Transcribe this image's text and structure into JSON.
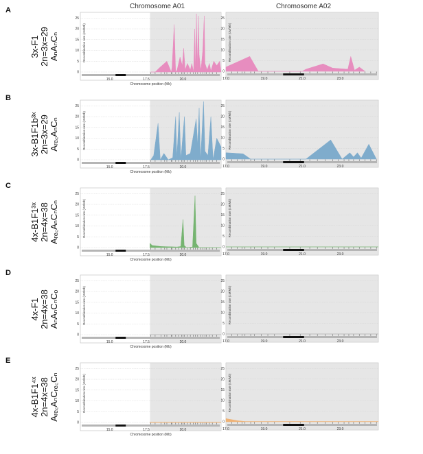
{
  "figure": {
    "column_titles": [
      "Chromosome A01",
      "Chromosome A02"
    ],
    "rows": [
      {
        "letter": "A",
        "label_lines": [
          "3x-F1",
          "2n=3x=29",
          "AₙAₙCₙ"
        ]
      },
      {
        "letter": "B",
        "label_lines": [
          "3x-B1F1b³ˣ",
          "2n=3x=29",
          "Aᵣₑ꜀AₙCₙ"
        ]
      },
      {
        "letter": "C",
        "label_lines": [
          "4x-B1F1³ˣ",
          "2n=4x=38",
          "Aᵣₑ꜀AₙCₙCₙ"
        ]
      },
      {
        "letter": "D",
        "label_lines": [
          "4x-F1",
          "2n=4x=38",
          "AₙAₙCₙCₒ"
        ]
      },
      {
        "letter": "E",
        "label_lines": [
          "4x-B1F1⁴ˣ",
          "2n=4x=38",
          "Aᵣₑ꜀AₙCᵣₑ꜀Cₙ"
        ]
      }
    ],
    "colors": {
      "A": "#e889bd",
      "B": "#7aa9cb",
      "C": "#6fb26a",
      "D": "#aaaaaa",
      "E": "#f0b070",
      "region": "#e6e6e6"
    }
  },
  "chart_data": [
    {
      "type": "area",
      "title": "Chromosome A01",
      "xlabel": "Chromosome position (Mb)",
      "ylabel": "Recombination rate (cM/Mb)",
      "xlim": [
        13.0,
        22.6
      ],
      "ylim": [
        0,
        27
      ],
      "xticks": [
        15.0,
        17.5,
        20.0
      ],
      "yticks": [
        0,
        5,
        10,
        15,
        20,
        25
      ],
      "shaded_region_start_mb": 17.75,
      "centromere_mb": [
        15.4,
        16.1
      ],
      "marker_positions_mb": [
        17.8,
        18.1,
        18.5,
        18.75,
        18.9,
        19.2,
        19.25,
        19.5,
        19.7,
        19.9,
        20.0,
        20.1,
        20.3,
        20.5,
        20.7,
        20.85,
        21.0,
        21.2,
        21.35,
        21.5,
        21.6,
        21.8,
        22.0,
        22.3
      ],
      "series": [
        {
          "name": "A",
          "points": [
            [
              17.8,
              0
            ],
            [
              18.1,
              0
            ],
            [
              18.4,
              2
            ],
            [
              18.9,
              5
            ],
            [
              19.2,
              0
            ],
            [
              19.25,
              2
            ],
            [
              19.4,
              22
            ],
            [
              19.5,
              0
            ],
            [
              19.6,
              1
            ],
            [
              19.8,
              7
            ],
            [
              19.95,
              3
            ],
            [
              20.05,
              11
            ],
            [
              20.15,
              1
            ],
            [
              20.3,
              4
            ],
            [
              20.5,
              1
            ],
            [
              20.6,
              4
            ],
            [
              20.72,
              0
            ],
            [
              20.8,
              20
            ],
            [
              20.86,
              0.5
            ],
            [
              20.92,
              27
            ],
            [
              20.98,
              1
            ],
            [
              21.05,
              26
            ],
            [
              21.1,
              8
            ],
            [
              21.22,
              0.5
            ],
            [
              21.35,
              10
            ],
            [
              21.45,
              26
            ],
            [
              21.5,
              4
            ],
            [
              21.65,
              1
            ],
            [
              21.8,
              4
            ],
            [
              21.9,
              0.5
            ],
            [
              22.1,
              5
            ],
            [
              22.3,
              3
            ],
            [
              22.5,
              5
            ],
            [
              22.6,
              0
            ]
          ]
        },
        {
          "name": "B",
          "points": [
            [
              17.8,
              0
            ],
            [
              18.0,
              2
            ],
            [
              18.3,
              17
            ],
            [
              18.45,
              0
            ],
            [
              18.7,
              3
            ],
            [
              19.0,
              0
            ],
            [
              19.3,
              1
            ],
            [
              19.5,
              20
            ],
            [
              19.58,
              1
            ],
            [
              19.75,
              22
            ],
            [
              19.85,
              0
            ],
            [
              20.1,
              20
            ],
            [
              20.2,
              2
            ],
            [
              20.5,
              3
            ],
            [
              20.9,
              19
            ],
            [
              21.0,
              7
            ],
            [
              21.1,
              24
            ],
            [
              21.2,
              0
            ],
            [
              21.4,
              27
            ],
            [
              21.5,
              4
            ],
            [
              21.7,
              2
            ],
            [
              21.9,
              20
            ],
            [
              22.05,
              0
            ],
            [
              22.3,
              10
            ],
            [
              22.6,
              6
            ]
          ]
        },
        {
          "name": "C",
          "points": [
            [
              17.75,
              2
            ],
            [
              17.9,
              1
            ],
            [
              18.5,
              0.5
            ],
            [
              19.6,
              0.3
            ],
            [
              19.85,
              0.5
            ],
            [
              20.0,
              13
            ],
            [
              20.08,
              1
            ],
            [
              20.25,
              0
            ],
            [
              20.65,
              0.3
            ],
            [
              20.82,
              24
            ],
            [
              20.9,
              2
            ],
            [
              21.1,
              0
            ],
            [
              22.6,
              0
            ]
          ]
        },
        {
          "name": "D",
          "points": [
            [
              17.75,
              0
            ],
            [
              22.6,
              0
            ]
          ]
        },
        {
          "name": "E",
          "points": [
            [
              17.75,
              0.2
            ],
            [
              22.6,
              0.2
            ]
          ]
        }
      ]
    },
    {
      "type": "area",
      "title": "Chromosome A02",
      "xlabel": "",
      "ylabel": "Recombination rate (cM/Mb)",
      "xlim": [
        17.0,
        25.0
      ],
      "ylim": [
        0,
        27
      ],
      "xticks": [
        17.0,
        19.0,
        21.0,
        23.0
      ],
      "yticks": [
        0,
        5,
        10,
        15,
        20,
        25
      ],
      "centromere_mb": [
        20.0,
        21.1
      ],
      "marker_positions_mb": [
        17.3,
        17.6,
        17.85,
        18.0,
        18.3,
        18.5,
        18.85,
        19.2,
        19.55,
        20.35,
        20.9,
        21.4,
        21.8,
        22.2,
        22.6,
        22.9,
        23.2,
        23.45,
        23.7,
        24.0,
        24.3,
        24.6,
        24.9
      ],
      "series": [
        {
          "name": "A",
          "points": [
            [
              17.0,
              2
            ],
            [
              18.25,
              7
            ],
            [
              18.7,
              0
            ],
            [
              21.0,
              0
            ],
            [
              21.2,
              1
            ],
            [
              22.1,
              3.5
            ],
            [
              22.6,
              1.5
            ],
            [
              23.4,
              1
            ],
            [
              23.55,
              7
            ],
            [
              23.75,
              0.5
            ],
            [
              24.0,
              2
            ],
            [
              24.3,
              0
            ]
          ]
        },
        {
          "name": "B",
          "points": [
            [
              17.0,
              3
            ],
            [
              17.9,
              2.5
            ],
            [
              18.3,
              0
            ],
            [
              21.2,
              0
            ],
            [
              22.5,
              9
            ],
            [
              23.1,
              0
            ],
            [
              23.5,
              3
            ],
            [
              23.7,
              1
            ],
            [
              23.9,
              3
            ],
            [
              24.1,
              0.5
            ],
            [
              24.5,
              7
            ],
            [
              24.9,
              0
            ]
          ]
        },
        {
          "name": "C",
          "points": [
            [
              17.0,
              0
            ],
            [
              25.0,
              0
            ]
          ]
        },
        {
          "name": "D",
          "points": [
            [
              17.0,
              0
            ],
            [
              25.0,
              0
            ]
          ]
        },
        {
          "name": "E",
          "points": [
            [
              17.0,
              1.5
            ],
            [
              17.6,
              0.5
            ],
            [
              18.0,
              0.15
            ],
            [
              25.0,
              0.15
            ]
          ]
        }
      ]
    }
  ]
}
